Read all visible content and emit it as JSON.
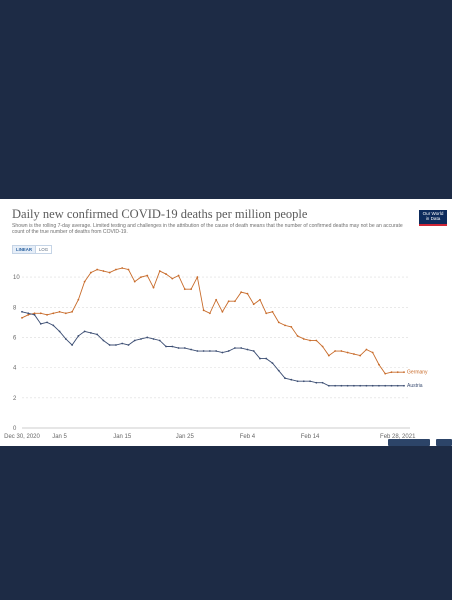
{
  "chart_data": {
    "type": "line",
    "title": "Daily new confirmed COVID-19 deaths per million people",
    "subtitle": "Shown is the rolling 7-day average. Limited testing and challenges in the attribution of the cause of death means that the number of confirmed deaths may not be an accurate count of the true number of deaths from COVID-19.",
    "scale_options": [
      "LINEAR",
      "LOG"
    ],
    "selected_scale": "LINEAR",
    "x_tick_labels": [
      "Dec 30, 2020",
      "Jan 5",
      "Jan 15",
      "Jan 25",
      "Feb 4",
      "Feb 14",
      "Feb 28, 2021"
    ],
    "y_tick_labels": [
      "0",
      "2",
      "4",
      "6",
      "8",
      "10"
    ],
    "ylim": [
      0,
      11
    ],
    "grid": "horizontal dashed",
    "series": [
      {
        "name": "Germany",
        "color": "#c86b2a",
        "values": [
          7.3,
          7.5,
          7.6,
          7.6,
          7.5,
          7.6,
          7.7,
          7.6,
          7.7,
          8.5,
          9.7,
          10.3,
          10.5,
          10.4,
          10.3,
          10.5,
          10.6,
          10.5,
          9.7,
          10.0,
          10.1,
          9.3,
          10.4,
          10.2,
          9.9,
          10.1,
          9.2,
          9.2,
          10.0,
          7.8,
          7.6,
          8.5,
          7.7,
          8.4,
          8.4,
          9.0,
          8.9,
          8.2,
          8.5,
          7.6,
          7.7,
          7.0,
          6.8,
          6.7,
          6.1,
          5.9,
          5.8,
          5.8,
          5.4,
          4.8,
          5.1,
          5.1,
          5.0,
          4.9,
          4.8,
          5.2,
          5.0,
          4.2,
          3.6,
          3.7,
          3.7,
          3.7
        ]
      },
      {
        "name": "Austria",
        "color": "#3c4e73",
        "values": [
          7.7,
          7.6,
          7.5,
          6.9,
          7.0,
          6.8,
          6.4,
          5.9,
          5.5,
          6.1,
          6.4,
          6.3,
          6.2,
          5.8,
          5.5,
          5.5,
          5.6,
          5.5,
          5.8,
          5.9,
          6.0,
          5.9,
          5.8,
          5.4,
          5.4,
          5.3,
          5.3,
          5.2,
          5.1,
          5.1,
          5.1,
          5.1,
          5.0,
          5.1,
          5.3,
          5.3,
          5.2,
          5.1,
          4.6,
          4.6,
          4.3,
          3.8,
          3.3,
          3.2,
          3.1,
          3.1,
          3.1,
          3.0,
          3.0,
          2.8,
          2.8,
          2.8,
          2.8,
          2.8,
          2.8,
          2.8,
          2.8,
          2.8,
          2.8,
          2.8,
          2.8,
          2.8
        ]
      }
    ]
  },
  "logo": {
    "line1": "Our World",
    "line2": "in Data"
  }
}
